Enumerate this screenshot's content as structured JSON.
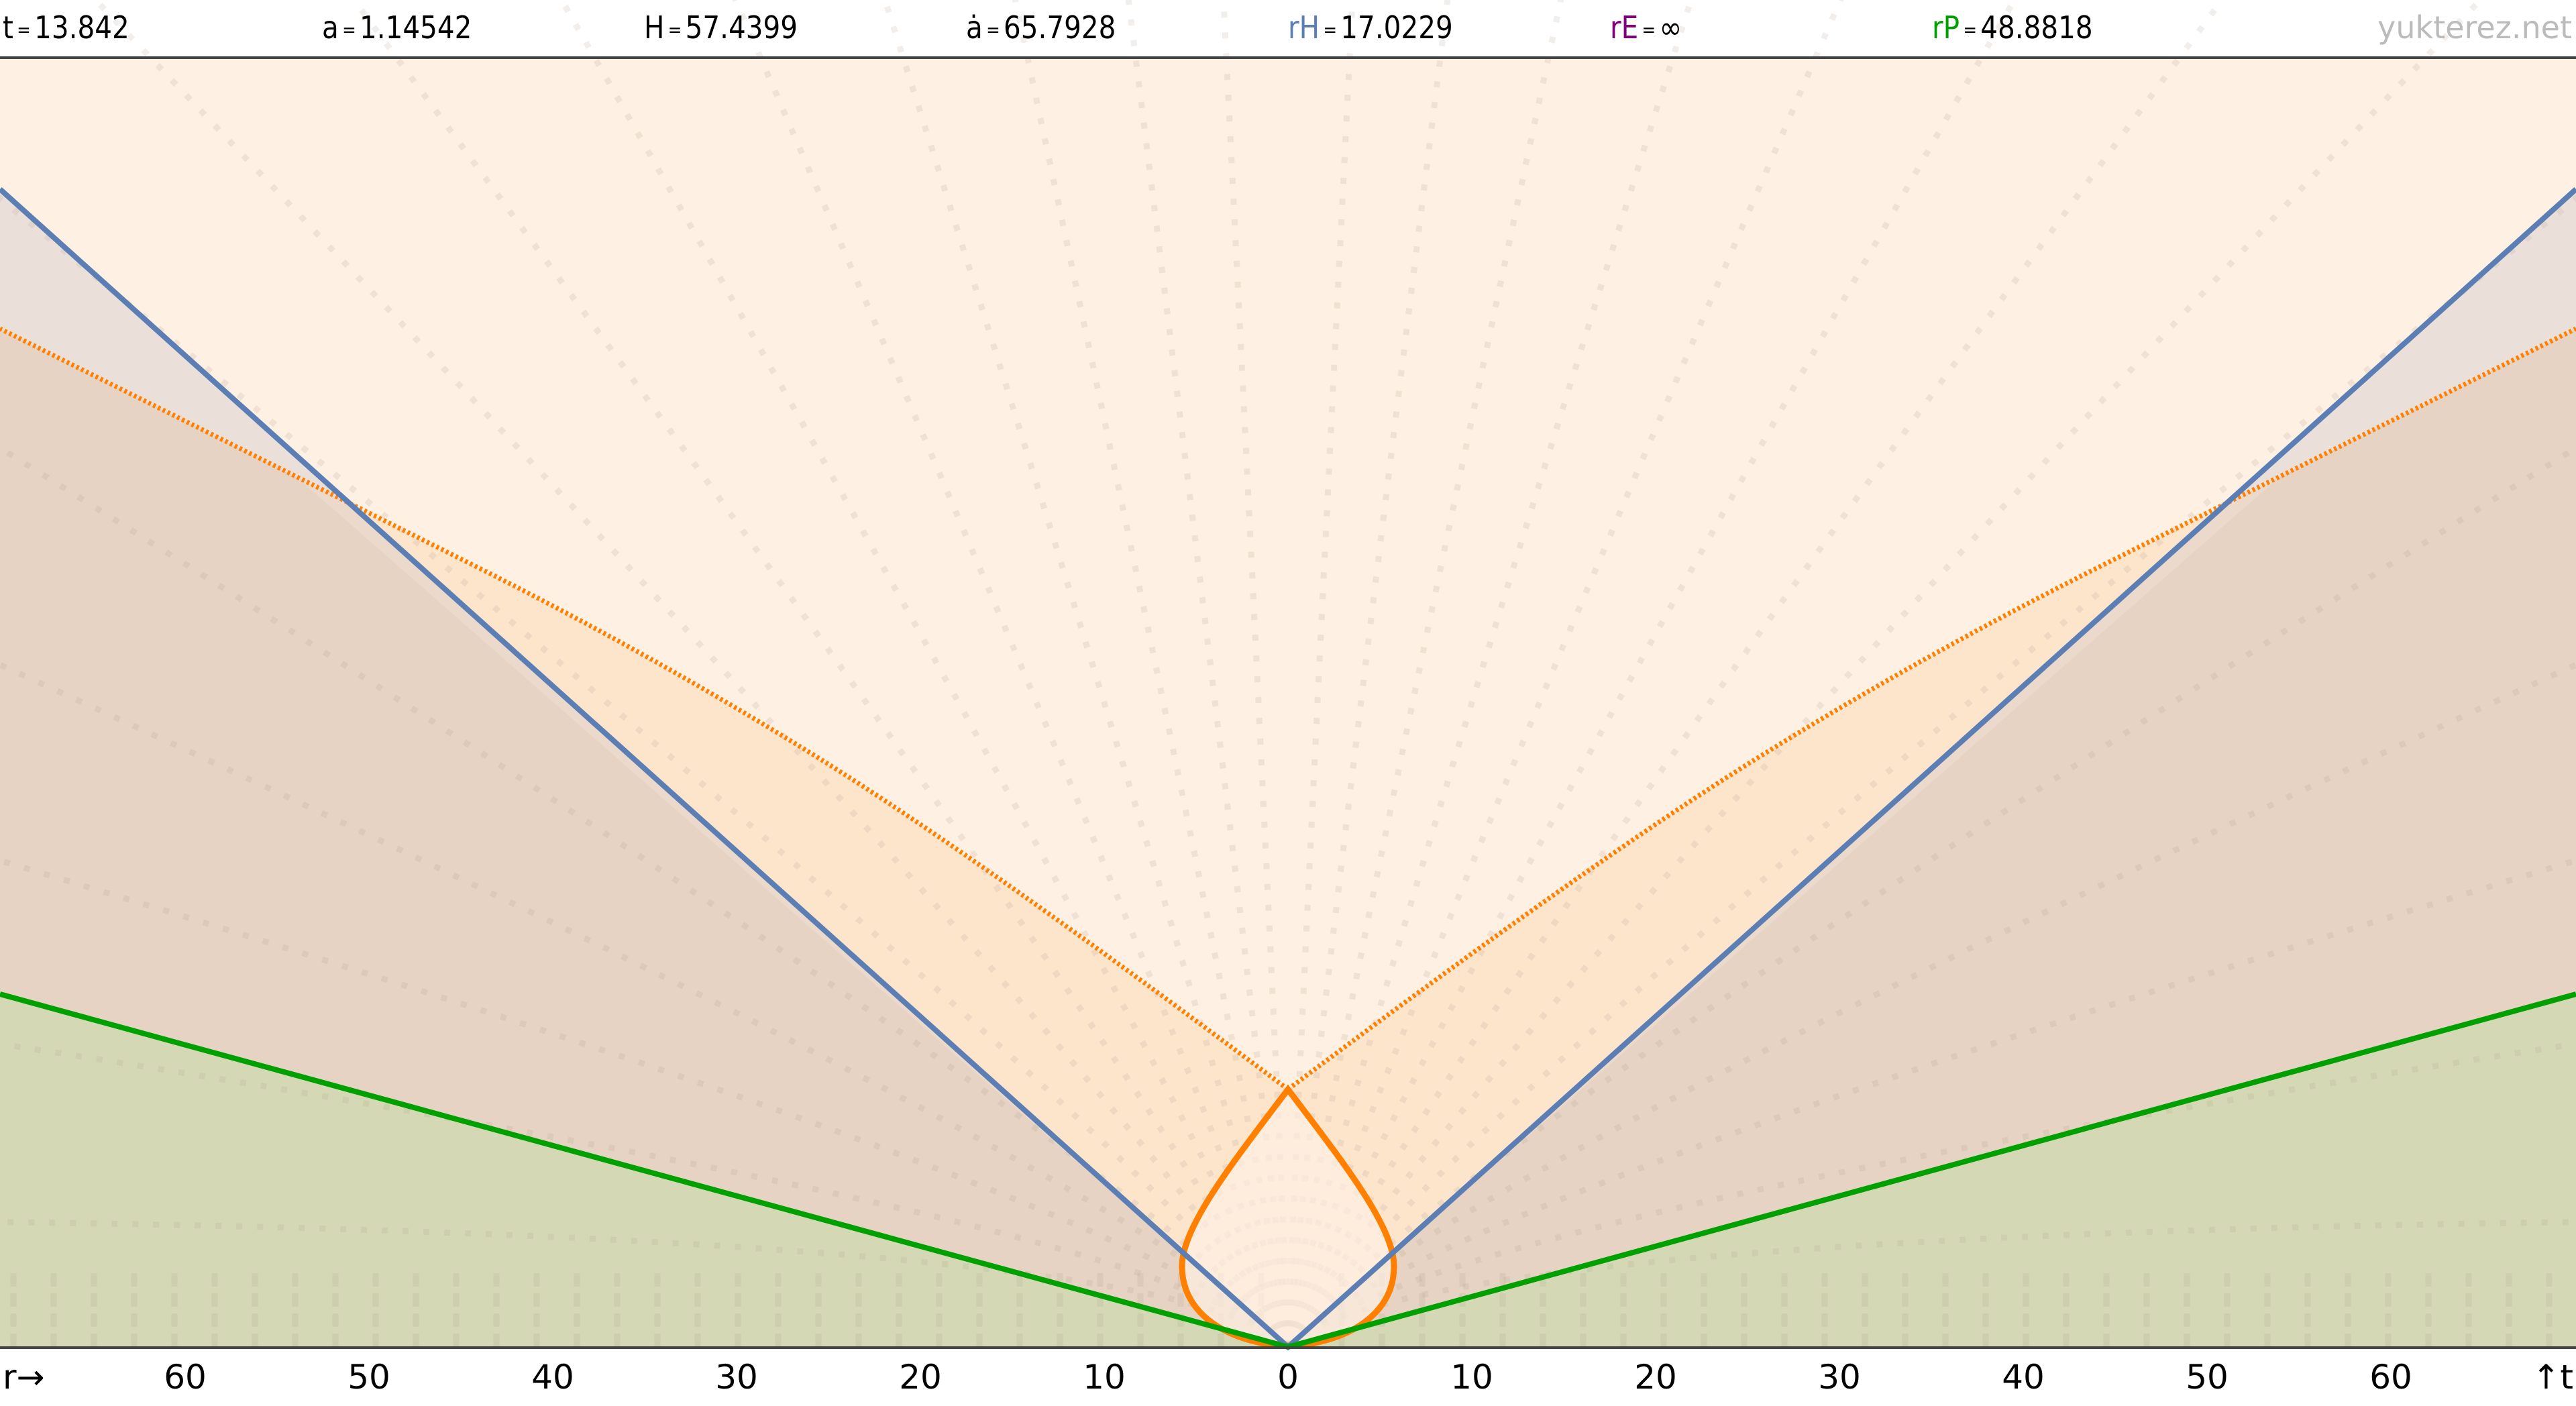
{
  "readouts": [
    {
      "label": "t",
      "value": "13.842",
      "color": "#000000"
    },
    {
      "label": "a",
      "value": "1.14542",
      "color": "#000000"
    },
    {
      "label": "H",
      "value": "57.4399",
      "color": "#000000"
    },
    {
      "label": "ȧ",
      "value": "65.7928",
      "color": "#000000"
    },
    {
      "label": "rH",
      "value": "17.0229",
      "color": "#5b7fb5"
    },
    {
      "label": "rE",
      "value": "∞",
      "color": "#800080"
    },
    {
      "label": "rP",
      "value": "48.8818",
      "color": "#00a000"
    }
  ],
  "equals": "=",
  "brand": "yukterez.net",
  "axis": {
    "x_label": "r→",
    "t_label": "↑t",
    "ticks": [
      "60",
      "50",
      "40",
      "30",
      "20",
      "10",
      "0",
      "10",
      "20",
      "30",
      "40",
      "50",
      "60"
    ]
  },
  "colors": {
    "hubble": "#5b7fb5",
    "lightcone": "#ff8000",
    "particle_horizon": "#00a000",
    "background": "#fef0e2",
    "frame": "#444444"
  }
}
